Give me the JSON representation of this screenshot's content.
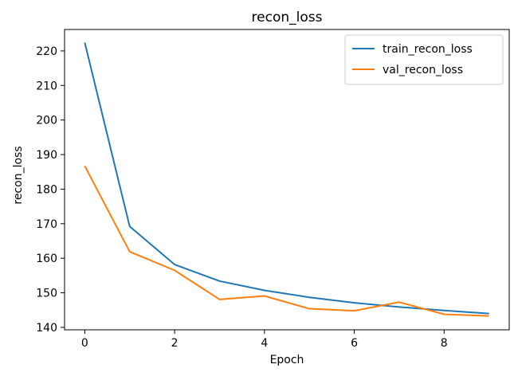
{
  "chart_data": {
    "type": "line",
    "title": "recon_loss",
    "xlabel": "Epoch",
    "ylabel": "recon_loss",
    "x": [
      0,
      1,
      2,
      3,
      4,
      5,
      6,
      7,
      8,
      9
    ],
    "xlim": [
      -0.45,
      9.45
    ],
    "ylim": [
      139.3,
      226.2
    ],
    "xticks": [
      0,
      2,
      4,
      6,
      8
    ],
    "yticks": [
      140,
      150,
      160,
      170,
      180,
      190,
      200,
      210,
      220
    ],
    "grid": false,
    "legend_position": "top-right",
    "series": [
      {
        "name": "train_recon_loss",
        "color": "#1f77b4",
        "values": [
          222.4,
          169.2,
          158.2,
          153.4,
          150.7,
          148.7,
          147.1,
          145.9,
          144.9,
          144.0
        ]
      },
      {
        "name": "val_recon_loss",
        "color": "#ff7f0e",
        "values": [
          186.7,
          161.9,
          156.5,
          148.1,
          149.1,
          145.4,
          144.8,
          147.3,
          143.8,
          143.3
        ]
      }
    ]
  }
}
